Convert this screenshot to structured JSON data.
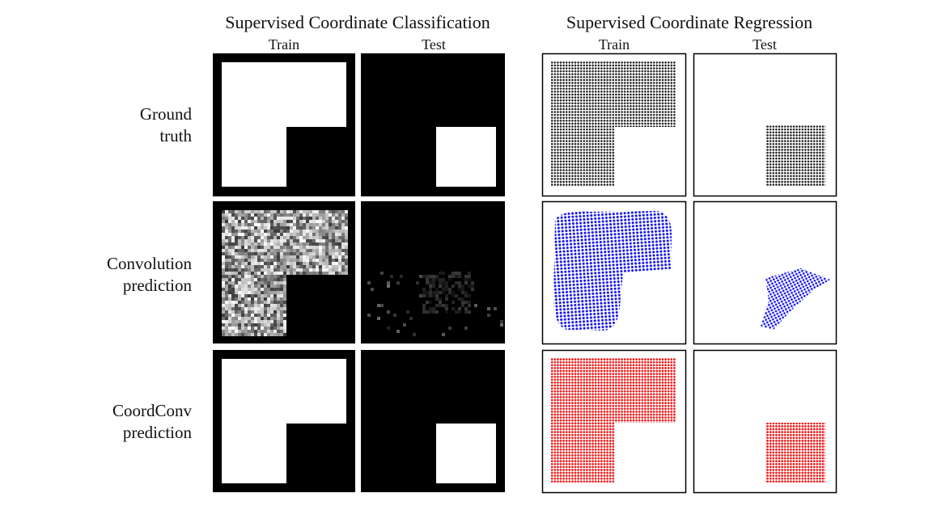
{
  "figure": {
    "groups": [
      "Supervised Coordinate Classification",
      "Supervised Coordinate Regression"
    ],
    "columns": [
      "Train",
      "Test",
      "Train",
      "Test"
    ],
    "rows": [
      [
        "Ground",
        "truth"
      ],
      [
        "Convolution",
        "prediction"
      ],
      [
        "CoordConv",
        "prediction"
      ]
    ]
  }
}
